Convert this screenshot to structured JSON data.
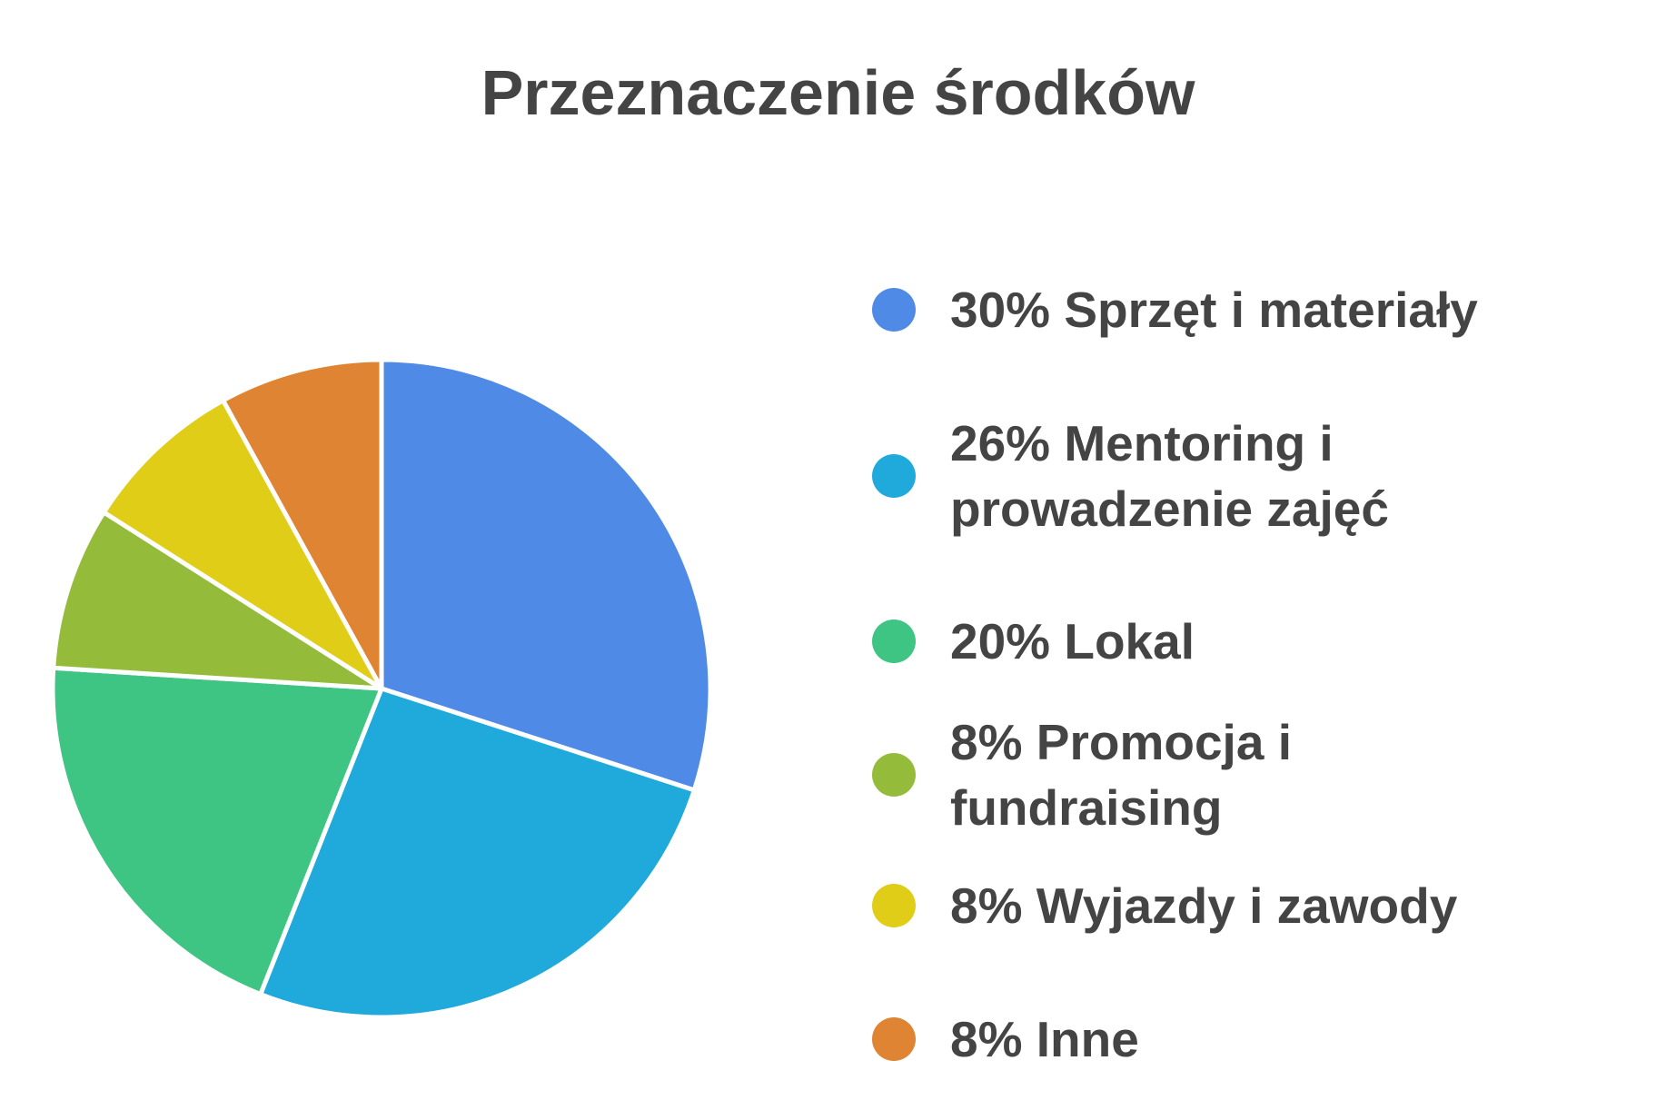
{
  "chart_data": {
    "type": "pie",
    "title": "Przeznaczenie środków",
    "legend_position": "right",
    "slices": [
      {
        "label": "30% Sprzęt i materiały",
        "value": 30,
        "color": "#4f8ae6"
      },
      {
        "label": "26% Mentoring i prowadzenie zajęć",
        "value": 26,
        "color": "#20aadb"
      },
      {
        "label": "20% Lokal",
        "value": 20,
        "color": "#3ec584"
      },
      {
        "label": "8% Promocja i fundraising",
        "value": 8,
        "color": "#94bc3a"
      },
      {
        "label": "8% Wyjazdy i zawody",
        "value": 8,
        "color": "#e0cd17"
      },
      {
        "label": "8% Inne",
        "value": 8,
        "color": "#de8432"
      }
    ]
  }
}
